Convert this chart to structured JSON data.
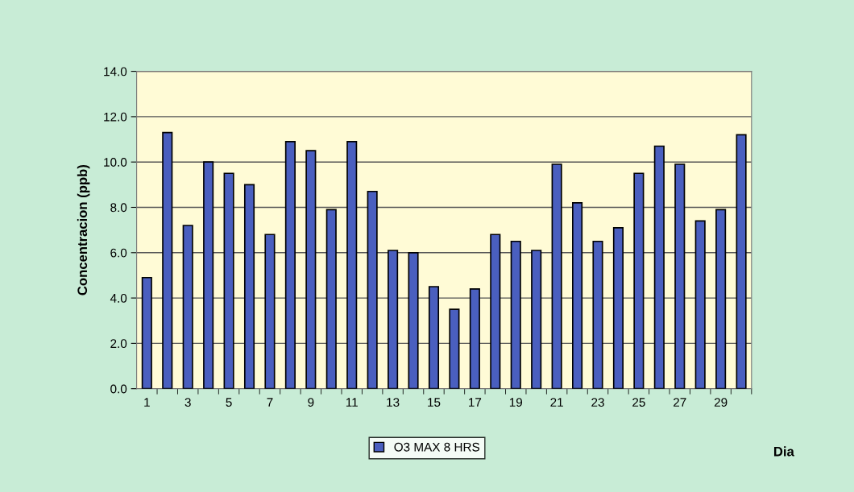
{
  "chart_data": {
    "type": "bar",
    "xlabel": "Dia",
    "ylabel": "Concentracion (ppb)",
    "categories": [
      "1",
      null,
      "3",
      null,
      "5",
      null,
      "7",
      null,
      "9",
      null,
      "11",
      null,
      "13",
      null,
      "15",
      null,
      "17",
      null,
      "19",
      null,
      "21",
      null,
      "23",
      null,
      "25",
      null,
      "27",
      null,
      "29",
      null
    ],
    "series": [
      {
        "name": "O3 MAX 8 HRS",
        "color": "#4a5fbf",
        "values": [
          4.9,
          11.3,
          7.2,
          10.0,
          9.5,
          9.0,
          6.8,
          10.9,
          10.5,
          7.9,
          10.9,
          8.7,
          6.1,
          6.0,
          4.5,
          3.5,
          4.4,
          6.8,
          6.5,
          6.1,
          9.9,
          8.2,
          6.5,
          7.1,
          9.5,
          10.7,
          9.9,
          7.4,
          7.9,
          11.2
        ]
      }
    ],
    "ylim": [
      0,
      14
    ],
    "yticks": [
      {
        "value": 0,
        "label": "0.0"
      },
      {
        "value": 2,
        "label": "2.0"
      },
      {
        "value": 4,
        "label": "4.0"
      },
      {
        "value": 6,
        "label": "6.0"
      },
      {
        "value": 8,
        "label": "8.0"
      },
      {
        "value": 10,
        "label": "10.0"
      },
      {
        "value": 12,
        "label": "12.0"
      },
      {
        "value": 14,
        "label": "14.0"
      }
    ],
    "grid": "y",
    "legend": "bottom"
  }
}
